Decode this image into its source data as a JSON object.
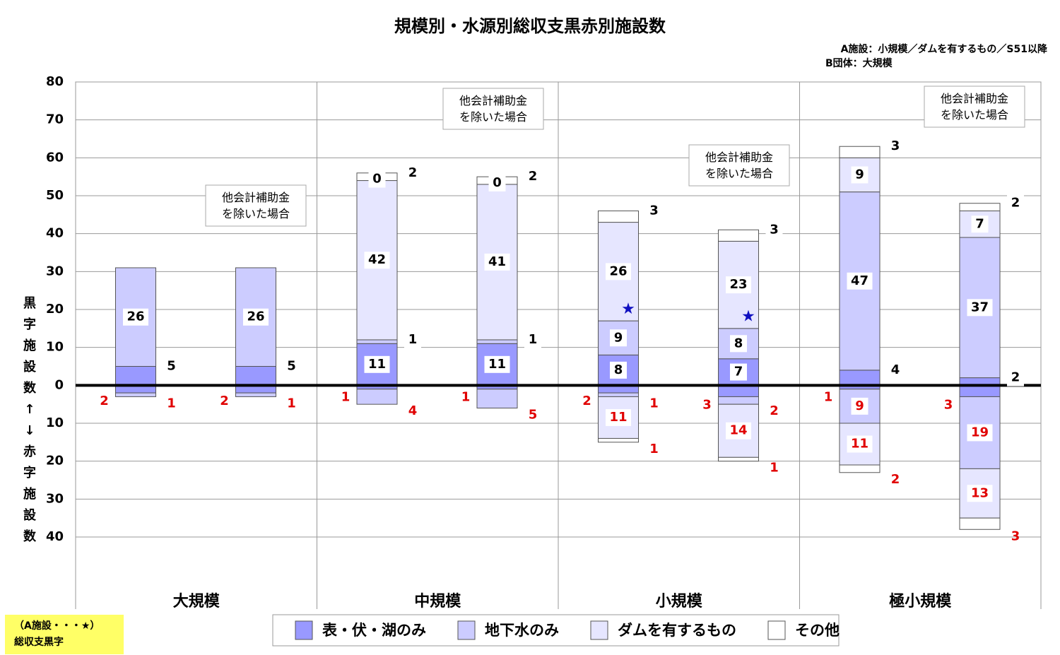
{
  "chart_data": {
    "type": "stacked_bar_diverging",
    "title": "規模別・水源別総収支黒赤別施設数",
    "subtitle": [
      "A施設：小規模／ダムを有するもの／S51以降",
      "B団体：大規模"
    ],
    "y_axis_label": "黒字施設数↑↓赤字施設数",
    "groups": [
      "大規模",
      "中規模",
      "小規模",
      "極小規模"
    ],
    "categories": [
      null,
      null,
      null,
      null,
      null,
      null,
      null,
      null
    ],
    "notes": [
      null,
      "他会計補助金を除いた場合",
      null,
      "他会計補助金を除いた場合",
      null,
      "他会計補助金を除いた場合",
      null,
      "他会計補助金を除いた場合"
    ],
    "star": [
      false,
      false,
      false,
      false,
      true,
      true,
      false,
      false
    ],
    "star_symbol": "★",
    "footnote": [
      "（A施設・・・★）",
      "総収支黒字"
    ],
    "ylim": [
      -40,
      80
    ],
    "yticks": [
      {
        "value": -40,
        "label": "40"
      },
      {
        "value": -30,
        "label": "30"
      },
      {
        "value": -20,
        "label": "20"
      },
      {
        "value": -10,
        "label": "10"
      },
      0,
      10,
      20,
      30,
      40,
      50,
      60,
      70,
      80
    ],
    "grid": true,
    "series": [
      {
        "name": "表・伏・湖のみ",
        "color": "#9999ff",
        "values": [
          5,
          5,
          11,
          11,
          8,
          7,
          4,
          2
        ],
        "deficit_values": [
          -2,
          -2,
          -1,
          -1,
          -2,
          -3,
          -1,
          -3
        ],
        "deficit_value_labels": [
          "2",
          "2",
          "1",
          "1",
          "2",
          "3",
          "1",
          "3"
        ]
      },
      {
        "name": "地下水のみ",
        "color": "#ccccff",
        "values": [
          26,
          26,
          1,
          1,
          9,
          8,
          47,
          37
        ],
        "deficit_values": [
          -1,
          -1,
          -4,
          -5,
          -1,
          -2,
          -9,
          -19
        ],
        "deficit_value_labels": [
          "1",
          "1",
          "4",
          "5",
          "1",
          "2",
          "9",
          "19"
        ]
      },
      {
        "name": "ダムを有するもの",
        "color": "#e6e6ff",
        "values": [
          null,
          null,
          42,
          41,
          26,
          23,
          9,
          7
        ],
        "deficit_values": [
          null,
          null,
          null,
          null,
          -11,
          -14,
          -11,
          -13
        ],
        "deficit_value_labels": [
          null,
          null,
          null,
          null,
          "11",
          "14",
          "11",
          "13"
        ]
      },
      {
        "color": "#ffffff",
        "values": [
          null,
          null,
          0,
          0,
          null,
          null,
          null,
          null
        ],
        "deficit_values": [
          null,
          null,
          null,
          null,
          null,
          null,
          null,
          null
        ],
        "deficit_value_labels": [
          null,
          null,
          null,
          null,
          null,
          null,
          null,
          null
        ]
      },
      {
        "name": "その他",
        "color": "#ffffff",
        "values": [
          null,
          null,
          2,
          2,
          3,
          3,
          3,
          2
        ],
        "deficit_values": [
          null,
          null,
          null,
          null,
          -1,
          -1,
          -2,
          -3
        ],
        "deficit_value_labels": [
          null,
          null,
          null,
          null,
          "1",
          "1",
          "2",
          "3"
        ]
      }
    ]
  }
}
